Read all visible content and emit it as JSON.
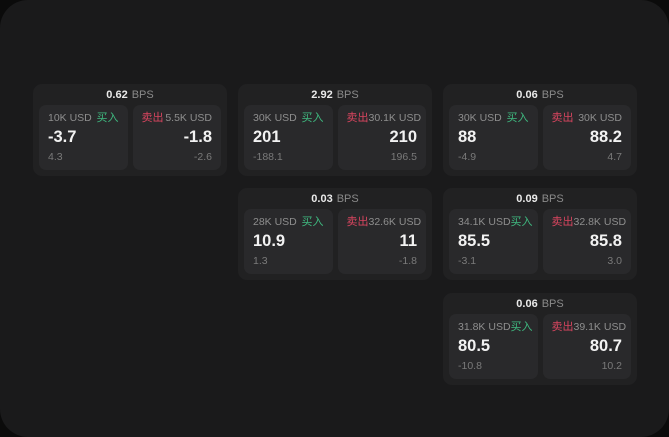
{
  "app": {
    "unit_label": "BPS",
    "buy_label": "买入",
    "sell_label": "卖出"
  },
  "colors": {
    "backdrop": "#0b0b0b",
    "window_background": "#1a1a1b",
    "card_background": "#212122",
    "panel_background": "#29292b",
    "buy_accent": "#3fba80",
    "sell_accent": "#d9455f",
    "primary_text": "#f2f2f2",
    "muted_text": "#8e8e8e"
  },
  "cards": [
    {
      "bps": "0.62",
      "buy": {
        "amount": "10K USD",
        "price": "-3.7",
        "delta": "4.3"
      },
      "sell": {
        "amount": "5.5K USD",
        "price": "-1.8",
        "delta": "-2.6"
      }
    },
    {
      "bps": "2.92",
      "buy": {
        "amount": "30K USD",
        "price": "201",
        "delta": "-188.1"
      },
      "sell": {
        "amount": "30.1K USD",
        "price": "210",
        "delta": "196.5"
      }
    },
    {
      "bps": "0.06",
      "buy": {
        "amount": "30K USD",
        "price": "88",
        "delta": "-4.9"
      },
      "sell": {
        "amount": "30K USD",
        "price": "88.2",
        "delta": "4.7"
      }
    },
    {
      "bps": "0.03",
      "buy": {
        "amount": "28K USD",
        "price": "10.9",
        "delta": "1.3"
      },
      "sell": {
        "amount": "32.6K USD",
        "price": "11",
        "delta": "-1.8"
      }
    },
    {
      "bps": "0.09",
      "buy": {
        "amount": "34.1K USD",
        "price": "85.5",
        "delta": "-3.1"
      },
      "sell": {
        "amount": "32.8K USD",
        "price": "85.8",
        "delta": "3.0"
      }
    },
    {
      "bps": "0.06",
      "buy": {
        "amount": "31.8K USD",
        "price": "80.5",
        "delta": "-10.8"
      },
      "sell": {
        "amount": "39.1K USD",
        "price": "80.7",
        "delta": "10.2"
      }
    }
  ]
}
